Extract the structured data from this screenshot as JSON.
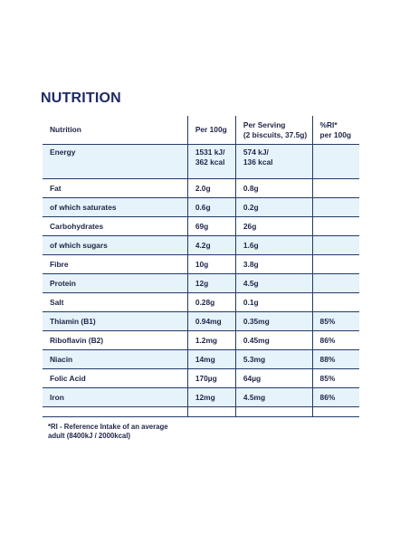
{
  "title": "NUTRITION",
  "table": {
    "headers": {
      "nutrient": "Nutrition",
      "per100g": "Per 100g",
      "per_serving_line1": "Per Serving",
      "per_serving_line2": "(2 biscuits, 37.5g)",
      "ri_line1": "%RI*",
      "ri_line2": "per 100g"
    },
    "energy": {
      "label": "Energy",
      "per100g_kj": "1531 kJ/",
      "per100g_kcal": "362 kcal",
      "serving_kj": "574 kJ/",
      "serving_kcal": "136 kcal",
      "ri": ""
    },
    "rows": [
      {
        "label": "Fat",
        "per100g": "2.0g",
        "serving": "0.8g",
        "ri": ""
      },
      {
        "label": "of which saturates",
        "per100g": "0.6g",
        "serving": "0.2g",
        "ri": ""
      },
      {
        "label": "Carbohydrates",
        "per100g": "69g",
        "serving": "26g",
        "ri": ""
      },
      {
        "label": "of which sugars",
        "per100g": "4.2g",
        "serving": "1.6g",
        "ri": ""
      },
      {
        "label": "Fibre",
        "per100g": "10g",
        "serving": "3.8g",
        "ri": ""
      },
      {
        "label": "Protein",
        "per100g": "12g",
        "serving": "4.5g",
        "ri": ""
      },
      {
        "label": "Salt",
        "per100g": "0.28g",
        "serving": "0.1g",
        "ri": ""
      },
      {
        "label": "Thiamin (B1)",
        "per100g": "0.94mg",
        "serving": "0.35mg",
        "ri": "85%"
      },
      {
        "label": "Riboflavin (B2)",
        "per100g": "1.2mg",
        "serving": "0.45mg",
        "ri": "86%"
      },
      {
        "label": "Niacin",
        "per100g": "14mg",
        "serving": "5.3mg",
        "ri": "88%"
      },
      {
        "label": "Folic Acid",
        "per100g": "170µg",
        "serving": "64µg",
        "ri": "85%"
      },
      {
        "label": "Iron",
        "per100g": "12mg",
        "serving": "4.5mg",
        "ri": "86%"
      }
    ]
  },
  "footnote_line1": "*RI - Reference Intake of an average",
  "footnote_line2": "adult (8400kJ / 2000kcal)",
  "colors": {
    "title": "#1e2a66",
    "text": "#1f2547",
    "row_shade": "#e6f3fb",
    "rule": "#243a6a"
  }
}
